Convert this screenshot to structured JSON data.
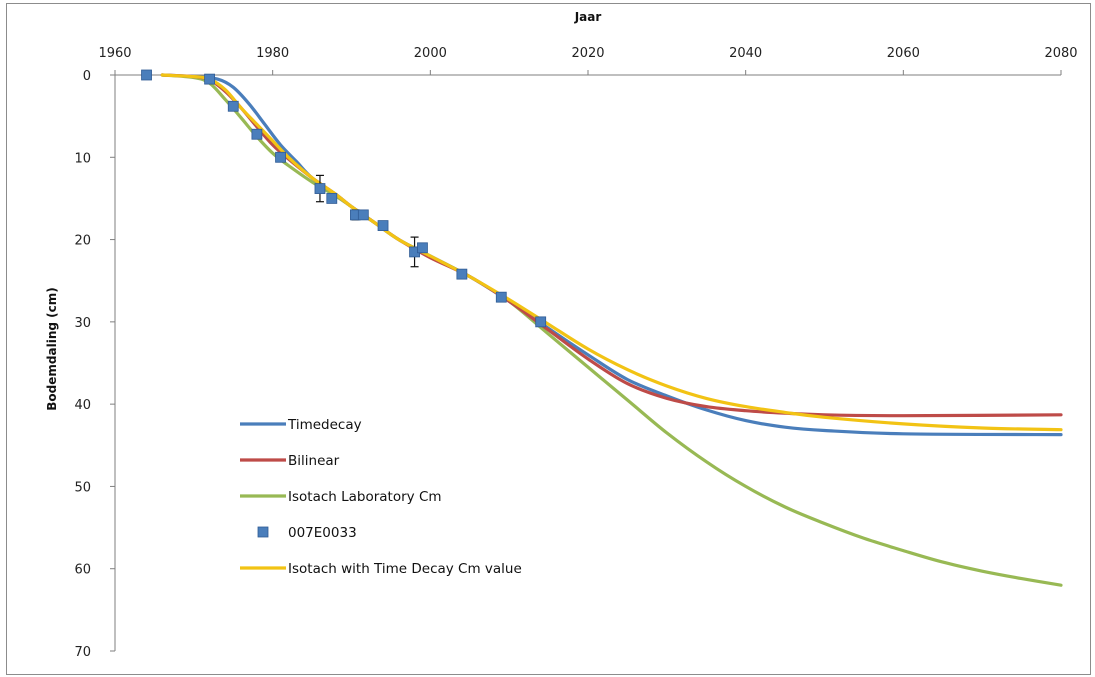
{
  "chart_data": {
    "type": "line",
    "xlabel": "Jaar",
    "ylabel": "Bodemdaling (cm)",
    "xlim": [
      1960,
      2080
    ],
    "ylim": [
      0,
      70
    ],
    "y_inverted": true,
    "x_axis_position": "top",
    "x_ticks": [
      1960,
      1980,
      2000,
      2020,
      2040,
      2060,
      2080
    ],
    "y_ticks": [
      0,
      10,
      20,
      30,
      40,
      50,
      60,
      70
    ],
    "grid": false,
    "legend_position": "lower-left",
    "series": [
      {
        "name": "Timedecay",
        "kind": "line",
        "color": "#4a7ebb",
        "points": [
          [
            1966,
            0
          ],
          [
            1970,
            0.2
          ],
          [
            1973,
            0.5
          ],
          [
            1975,
            1.5
          ],
          [
            1977,
            3.5
          ],
          [
            1979,
            6
          ],
          [
            1981,
            8.5
          ],
          [
            1983,
            10.5
          ],
          [
            1985,
            12.5
          ],
          [
            1988,
            14.5
          ],
          [
            1990,
            16
          ],
          [
            1993,
            18
          ],
          [
            1996,
            20
          ],
          [
            2000,
            22
          ],
          [
            2005,
            24.5
          ],
          [
            2010,
            27.5
          ],
          [
            2015,
            30.8
          ],
          [
            2020,
            34
          ],
          [
            2025,
            37
          ],
          [
            2030,
            39
          ],
          [
            2035,
            40.7
          ],
          [
            2040,
            42
          ],
          [
            2045,
            42.8
          ],
          [
            2050,
            43.2
          ],
          [
            2060,
            43.6
          ],
          [
            2080,
            43.7
          ]
        ]
      },
      {
        "name": "Bilinear",
        "kind": "line",
        "color": "#be4b48",
        "points": [
          [
            1966,
            0
          ],
          [
            1970,
            0.2
          ],
          [
            1972,
            0.6
          ],
          [
            1974,
            2
          ],
          [
            1976,
            4
          ],
          [
            1978,
            6.3
          ],
          [
            1980,
            8.5
          ],
          [
            1982,
            10.2
          ],
          [
            1985,
            12.5
          ],
          [
            1988,
            14.5
          ],
          [
            1990,
            16
          ],
          [
            1993,
            18
          ],
          [
            1996,
            20
          ],
          [
            2000,
            22.2
          ],
          [
            2005,
            24.5
          ],
          [
            2010,
            27.5
          ],
          [
            2015,
            31
          ],
          [
            2020,
            34.5
          ],
          [
            2025,
            37.5
          ],
          [
            2030,
            39.3
          ],
          [
            2035,
            40.3
          ],
          [
            2040,
            40.8
          ],
          [
            2045,
            41.1
          ],
          [
            2050,
            41.3
          ],
          [
            2060,
            41.4
          ],
          [
            2080,
            41.3
          ]
        ]
      },
      {
        "name": "Isotach Laboratory Cm",
        "kind": "line",
        "color": "#98b954",
        "points": [
          [
            1966,
            0
          ],
          [
            1970,
            0.3
          ],
          [
            1972,
            1
          ],
          [
            1974,
            3
          ],
          [
            1976,
            5.2
          ],
          [
            1978,
            7.5
          ],
          [
            1980,
            9.5
          ],
          [
            1982,
            11
          ],
          [
            1985,
            13
          ],
          [
            1988,
            14.7
          ],
          [
            1990,
            16
          ],
          [
            1993,
            18
          ],
          [
            1996,
            20
          ],
          [
            2000,
            22
          ],
          [
            2005,
            24.5
          ],
          [
            2010,
            27.5
          ],
          [
            2015,
            31.5
          ],
          [
            2020,
            35.5
          ],
          [
            2025,
            39.5
          ],
          [
            2030,
            43.5
          ],
          [
            2035,
            47
          ],
          [
            2040,
            50
          ],
          [
            2045,
            52.5
          ],
          [
            2050,
            54.5
          ],
          [
            2055,
            56.3
          ],
          [
            2060,
            57.8
          ],
          [
            2065,
            59.2
          ],
          [
            2070,
            60.3
          ],
          [
            2075,
            61.2
          ],
          [
            2080,
            62
          ]
        ]
      },
      {
        "name": "007E0033",
        "kind": "markers",
        "color": "#4a7ebb",
        "points": [
          [
            1964,
            0
          ],
          [
            1972,
            0.5
          ],
          [
            1975,
            3.8
          ],
          [
            1978,
            7.2
          ],
          [
            1981,
            10
          ],
          [
            1986,
            13.8
          ],
          [
            1987.5,
            15
          ],
          [
            1990.5,
            17
          ],
          [
            1991.5,
            17
          ],
          [
            1994,
            18.3
          ],
          [
            1998,
            21.5
          ],
          [
            1999,
            21
          ],
          [
            2004,
            24.2
          ],
          [
            2009,
            27
          ],
          [
            2014,
            30
          ]
        ],
        "error_bars": [
          [
            1986,
            13.8,
            1.6
          ],
          [
            1990.5,
            17,
            0.6
          ],
          [
            1998,
            21.5,
            1.8
          ]
        ]
      },
      {
        "name": "Isotach with  Time Decay Cm value",
        "kind": "line",
        "color": "#f2c314",
        "points": [
          [
            1966,
            0
          ],
          [
            1970,
            0.2
          ],
          [
            1972,
            0.5
          ],
          [
            1974,
            1.8
          ],
          [
            1976,
            4
          ],
          [
            1978,
            6
          ],
          [
            1980,
            8
          ],
          [
            1982,
            10
          ],
          [
            1985,
            12.5
          ],
          [
            1988,
            14.5
          ],
          [
            1990,
            16
          ],
          [
            1993,
            18
          ],
          [
            1996,
            20
          ],
          [
            2000,
            22
          ],
          [
            2005,
            24.5
          ],
          [
            2010,
            27.3
          ],
          [
            2015,
            30.3
          ],
          [
            2020,
            33.3
          ],
          [
            2025,
            35.8
          ],
          [
            2030,
            37.8
          ],
          [
            2035,
            39.3
          ],
          [
            2040,
            40.3
          ],
          [
            2045,
            41
          ],
          [
            2050,
            41.6
          ],
          [
            2060,
            42.4
          ],
          [
            2070,
            42.9
          ],
          [
            2080,
            43.1
          ]
        ]
      }
    ]
  }
}
